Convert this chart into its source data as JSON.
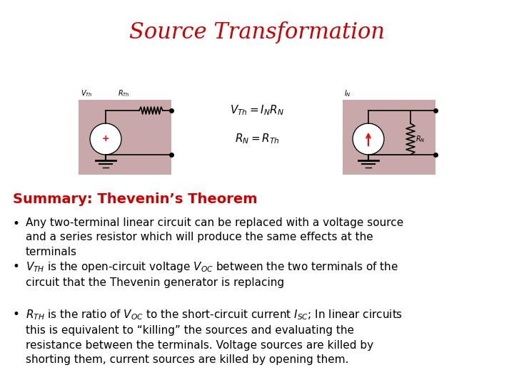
{
  "title": "Source Transformation",
  "title_color": "#CC0000",
  "title_fontsize": 22,
  "bg_color": "#ffffff",
  "subtitle": "Summary: Thevenin’s Theorem",
  "subtitle_color": "#CC0000",
  "subtitle_fontsize": 14,
  "bullet_fontsize": 11,
  "bullet_color": "#000000",
  "bullets": [
    "Any two-terminal linear circuit can be replaced with a voltage source\nand a series resistor which will produce the same effects at the\nterminals",
    "$V_{TH}$ is the open-circuit voltage $V_{OC}$ between the two terminals of the\ncircuit that the Thevenin generator is replacing",
    "$R_{TH}$ is the ratio of $V_{OC}$ to the short-circuit current $I_{SC}$; In linear circuits\nthis is equivalent to “killing” the sources and evaluating the\nresistance between the terminals. Voltage sources are killed by\nshorting them, current sources are killed by opening them."
  ],
  "eq_line1": "$V_{Th}=I_NR_N$",
  "eq_line2": "$R_N=R_{Th}$",
  "circuit_box_color": "#C8A8A8",
  "fig_width": 7.2,
  "fig_height": 5.4
}
